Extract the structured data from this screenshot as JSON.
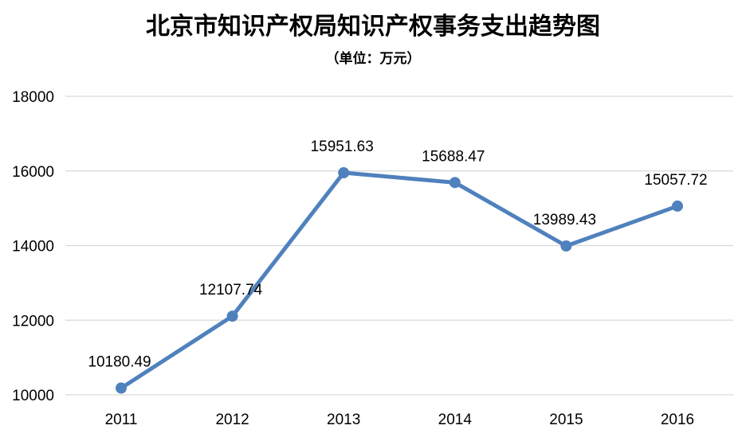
{
  "chart_data": {
    "type": "line",
    "title": "北京市知识产权局知识产权事务支出趋势图",
    "subtitle": "（单位：万元）",
    "x": [
      "2011",
      "2012",
      "2013",
      "2014",
      "2015",
      "2016"
    ],
    "series": [
      {
        "values": [
          10180.49,
          12107.74,
          15951.63,
          15688.47,
          13989.43,
          15057.72
        ]
      }
    ],
    "data_labels": [
      "10180.49",
      "12107.74",
      "15951.63",
      "15688.47",
      "13989.43",
      "15057.72"
    ],
    "y_ticks": [
      "10000",
      "12000",
      "14000",
      "16000",
      "18000"
    ],
    "ylim": [
      10000,
      18000
    ],
    "grid": true,
    "legend": "none",
    "colors": {
      "series": "#4f81bd",
      "grid": "#d9d9d9"
    }
  }
}
